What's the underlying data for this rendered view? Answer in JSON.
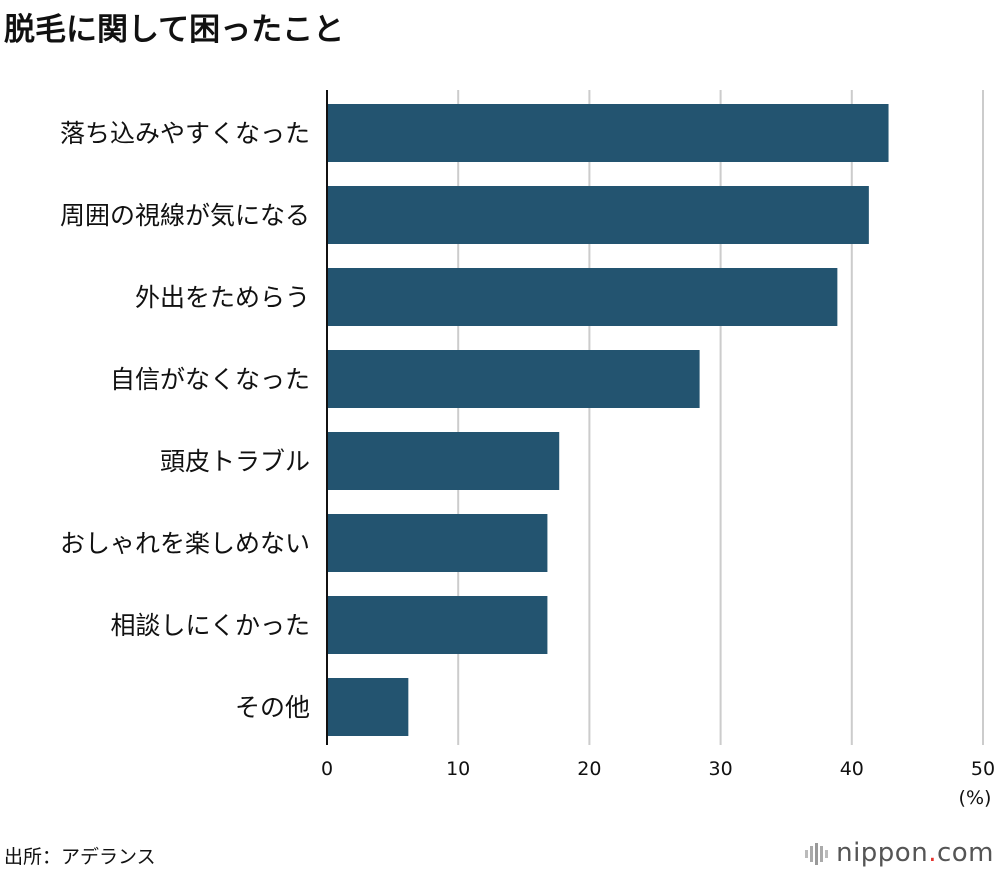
{
  "title": "脱毛に関して困ったこと",
  "source": "出所：アデランス",
  "logo": {
    "name": "nippon",
    "dot": ".",
    "suffix": "com"
  },
  "chart_data": {
    "type": "bar",
    "orientation": "horizontal",
    "categories": [
      "落ち込みやすくなった",
      "周囲の視線が気になる",
      "外出をためらう",
      "自信がなくなった",
      "頭皮トラブル",
      "おしゃれを楽しめない",
      "相談しにくかった",
      "その他"
    ],
    "values": [
      42.8,
      41.3,
      38.9,
      28.4,
      17.7,
      16.8,
      16.8,
      6.2
    ],
    "xlim": [
      0,
      50
    ],
    "ticks": [
      "0",
      "10",
      "20",
      "30",
      "40",
      "50"
    ],
    "unit_label": "(%)",
    "grid": true,
    "bar_color": "#235470",
    "grid_color": "#cccccc"
  }
}
